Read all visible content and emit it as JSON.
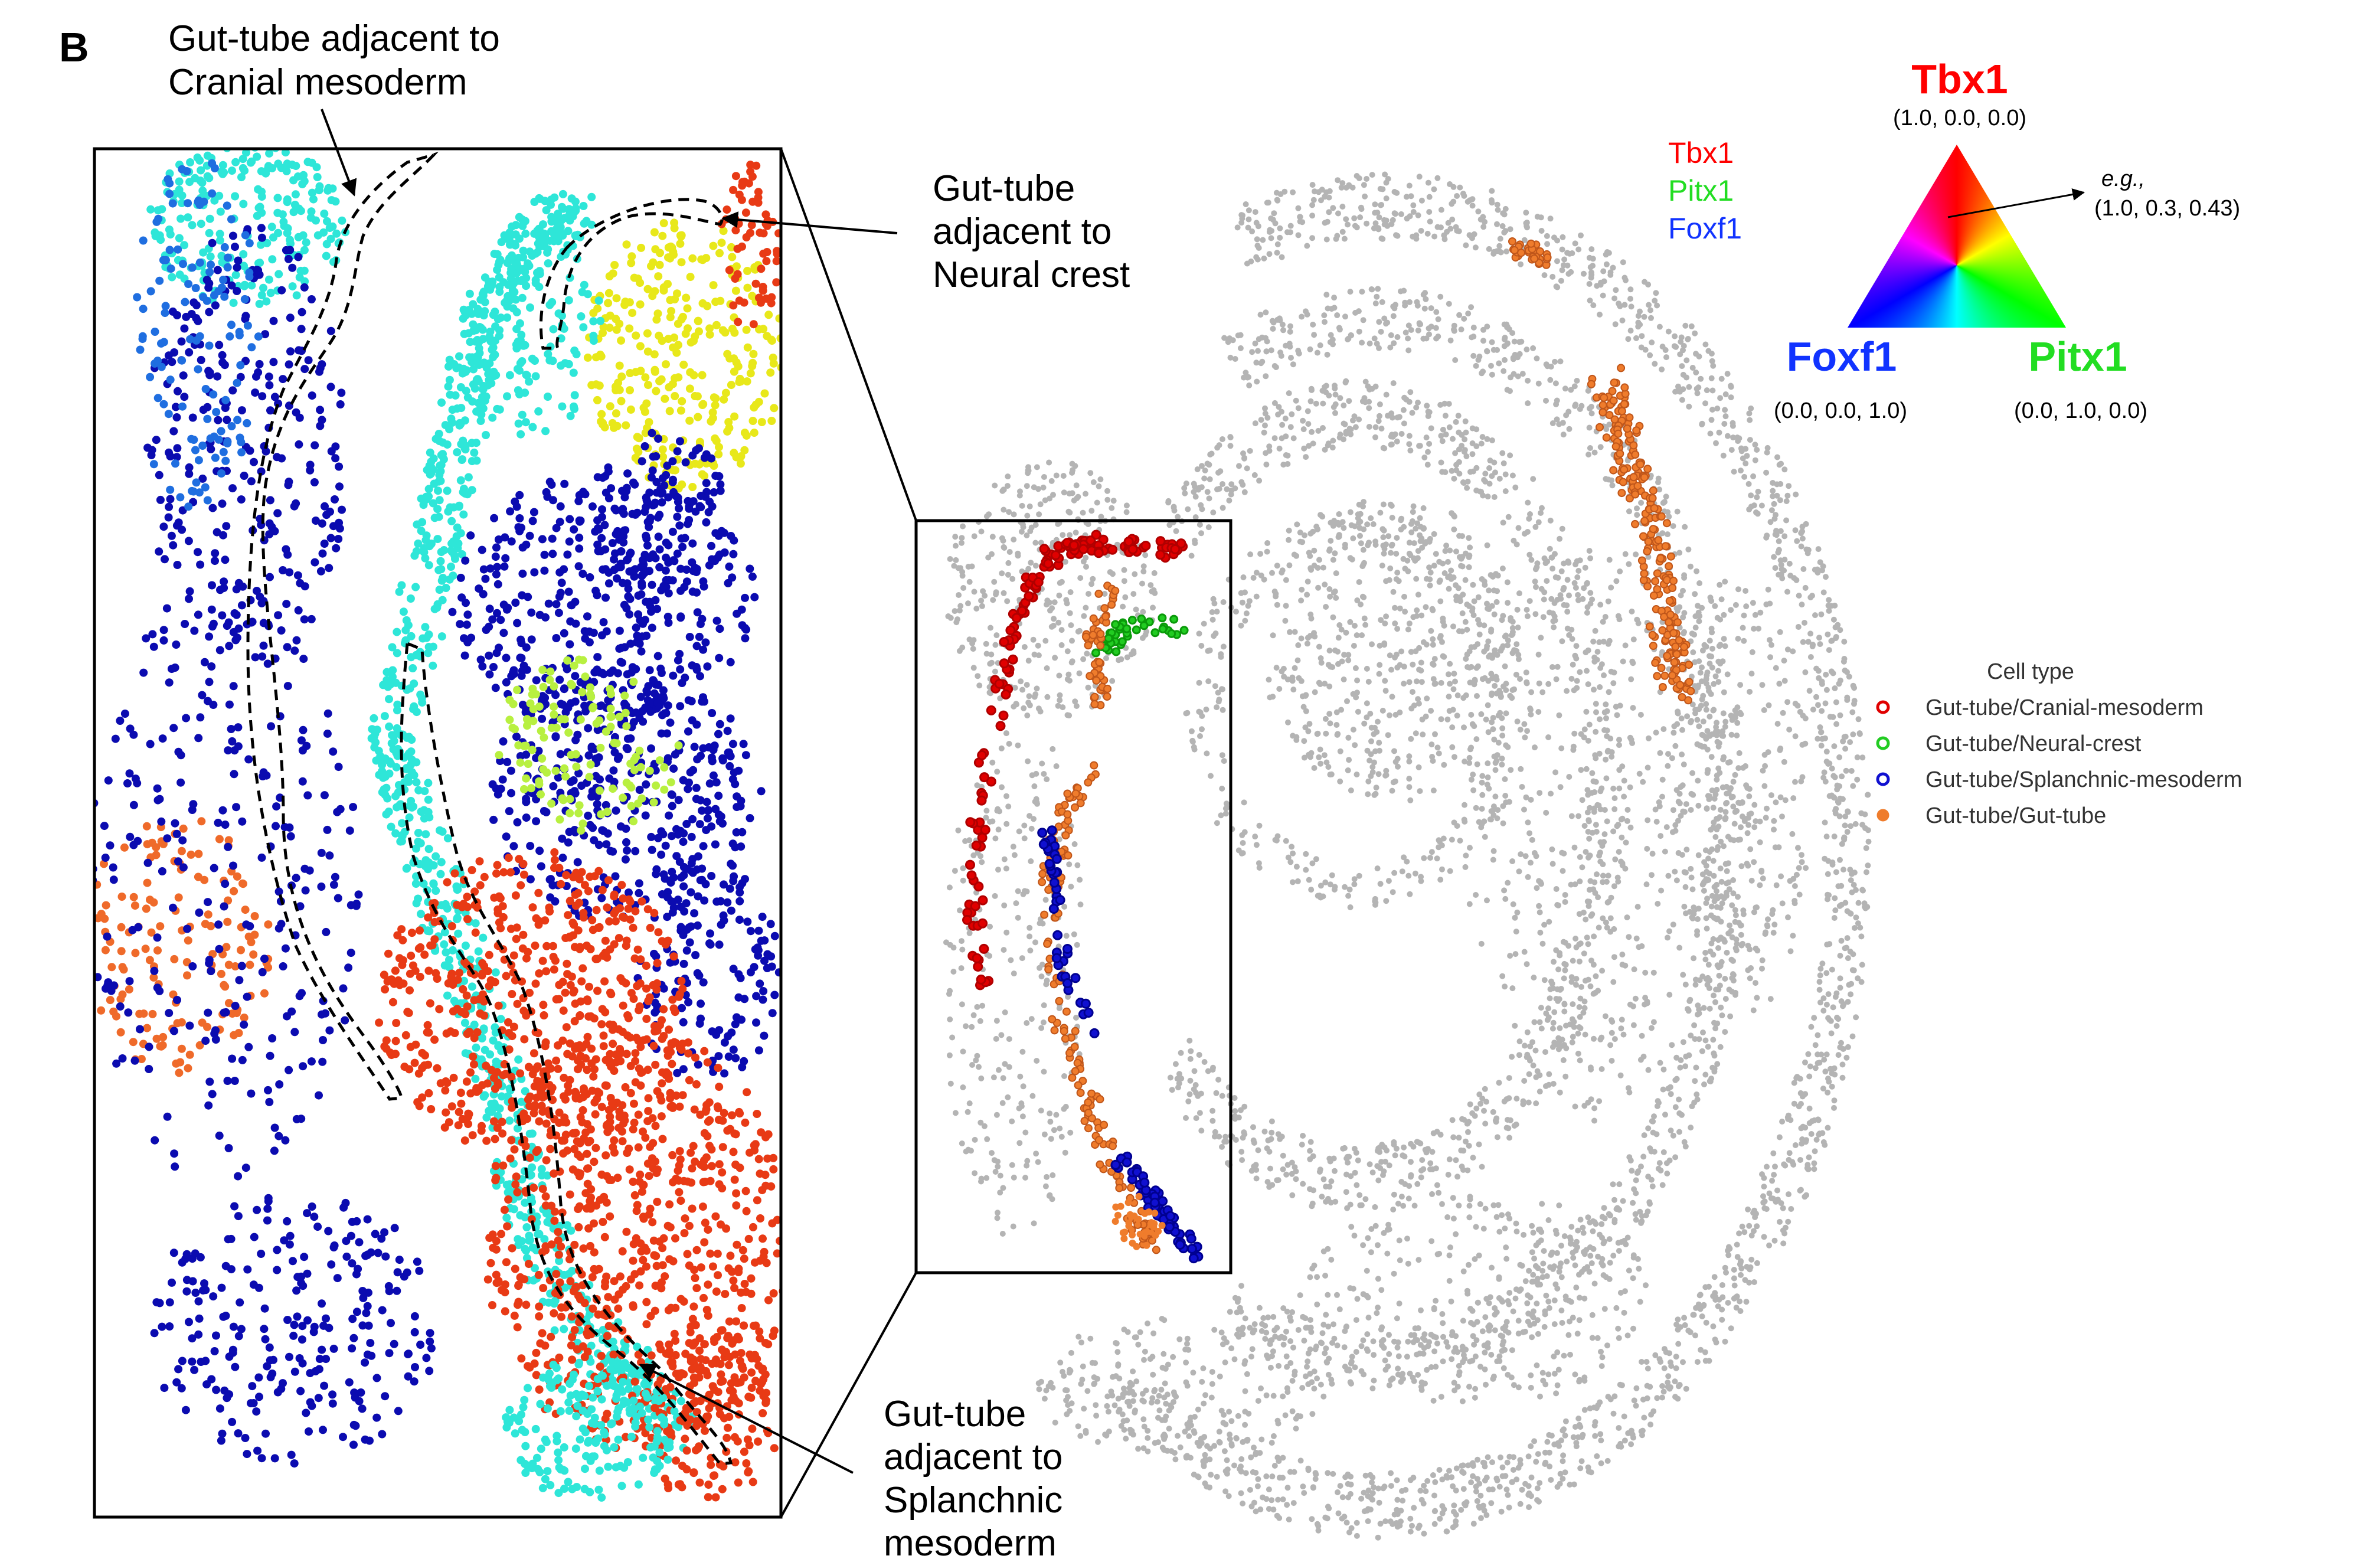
{
  "panel": {
    "letter": "B",
    "annotations": {
      "cranial": [
        "Gut-tube adjacent to",
        "Cranial mesoderm"
      ],
      "neural": [
        "Gut-tube",
        "adjacent to",
        "Neural crest"
      ],
      "splanchnic": [
        "Gut-tube",
        "adjacent to",
        "Splanchnic",
        "mesoderm"
      ]
    }
  },
  "gene_labels": [
    "Tbx1",
    "Pitx1",
    "Foxf1"
  ],
  "triangle": {
    "top": {
      "label": "Tbx1",
      "coord": "(1.0, 0.0, 0.0)"
    },
    "left": {
      "label": "Foxf1",
      "coord": "(0.0, 0.0, 1.0)"
    },
    "right": {
      "label": "Pitx1",
      "coord": "(0.0, 1.0, 0.0)"
    },
    "example_label": "e.g.,",
    "example_coord": "(1.0, 0.3, 0.43)"
  },
  "legend": {
    "title": "Cell type",
    "items": [
      {
        "label": "Gut-tube/Cranial-mesoderm",
        "color": "#e00000"
      },
      {
        "label": "Gut-tube/Neural-crest",
        "color": "#22cc22"
      },
      {
        "label": "Gut-tube/Splanchnic-mesoderm",
        "color": "#1010d0"
      },
      {
        "label": "Gut-tube/Gut-tube",
        "color": "#ef7c2c"
      }
    ]
  },
  "colors": {
    "background_cells": "#b4b4b4",
    "tbx1": "#ff0000",
    "pitx1": "#22dd22",
    "foxf1": "#1133ff",
    "annotation": "#000000"
  }
}
